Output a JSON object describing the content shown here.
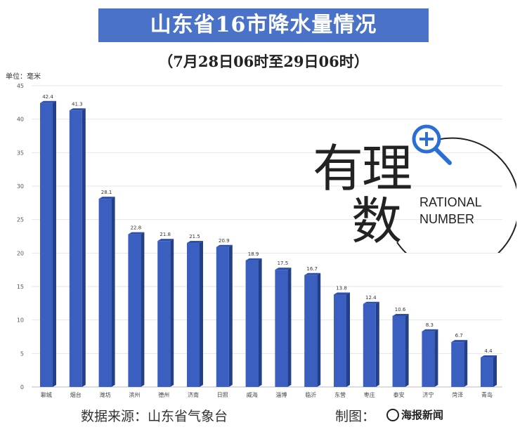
{
  "chart_data": {
    "type": "bar",
    "title": "山东省16市降水量情况",
    "subtitle": "（7月28日06时至29日06时）",
    "ylabel": "单位：毫米",
    "ylim": [
      0,
      45
    ],
    "yticks": [
      0,
      5,
      10,
      15,
      20,
      25,
      30,
      35,
      40,
      45
    ],
    "grid": true,
    "categories": [
      "聊城",
      "烟台",
      "潍坊",
      "滨州",
      "德州",
      "济南",
      "日照",
      "威海",
      "淄博",
      "临沂",
      "东营",
      "枣庄",
      "泰安",
      "济宁",
      "菏泽",
      "青岛"
    ],
    "values": [
      42.4,
      41.3,
      28.1,
      22.8,
      21.8,
      21.5,
      20.9,
      18.9,
      17.5,
      16.7,
      13.8,
      12.4,
      10.6,
      8.3,
      6.7,
      4.4
    ],
    "bar_color": "#3a5fc0"
  },
  "footer": {
    "source": "数据来源：山东省气象台",
    "made_by": "制图：",
    "brand": "海报新闻"
  },
  "logo": {
    "chars": [
      "有",
      "理",
      "数"
    ],
    "text_line1": "RATIONAL",
    "text_line2": "NUMBER"
  }
}
